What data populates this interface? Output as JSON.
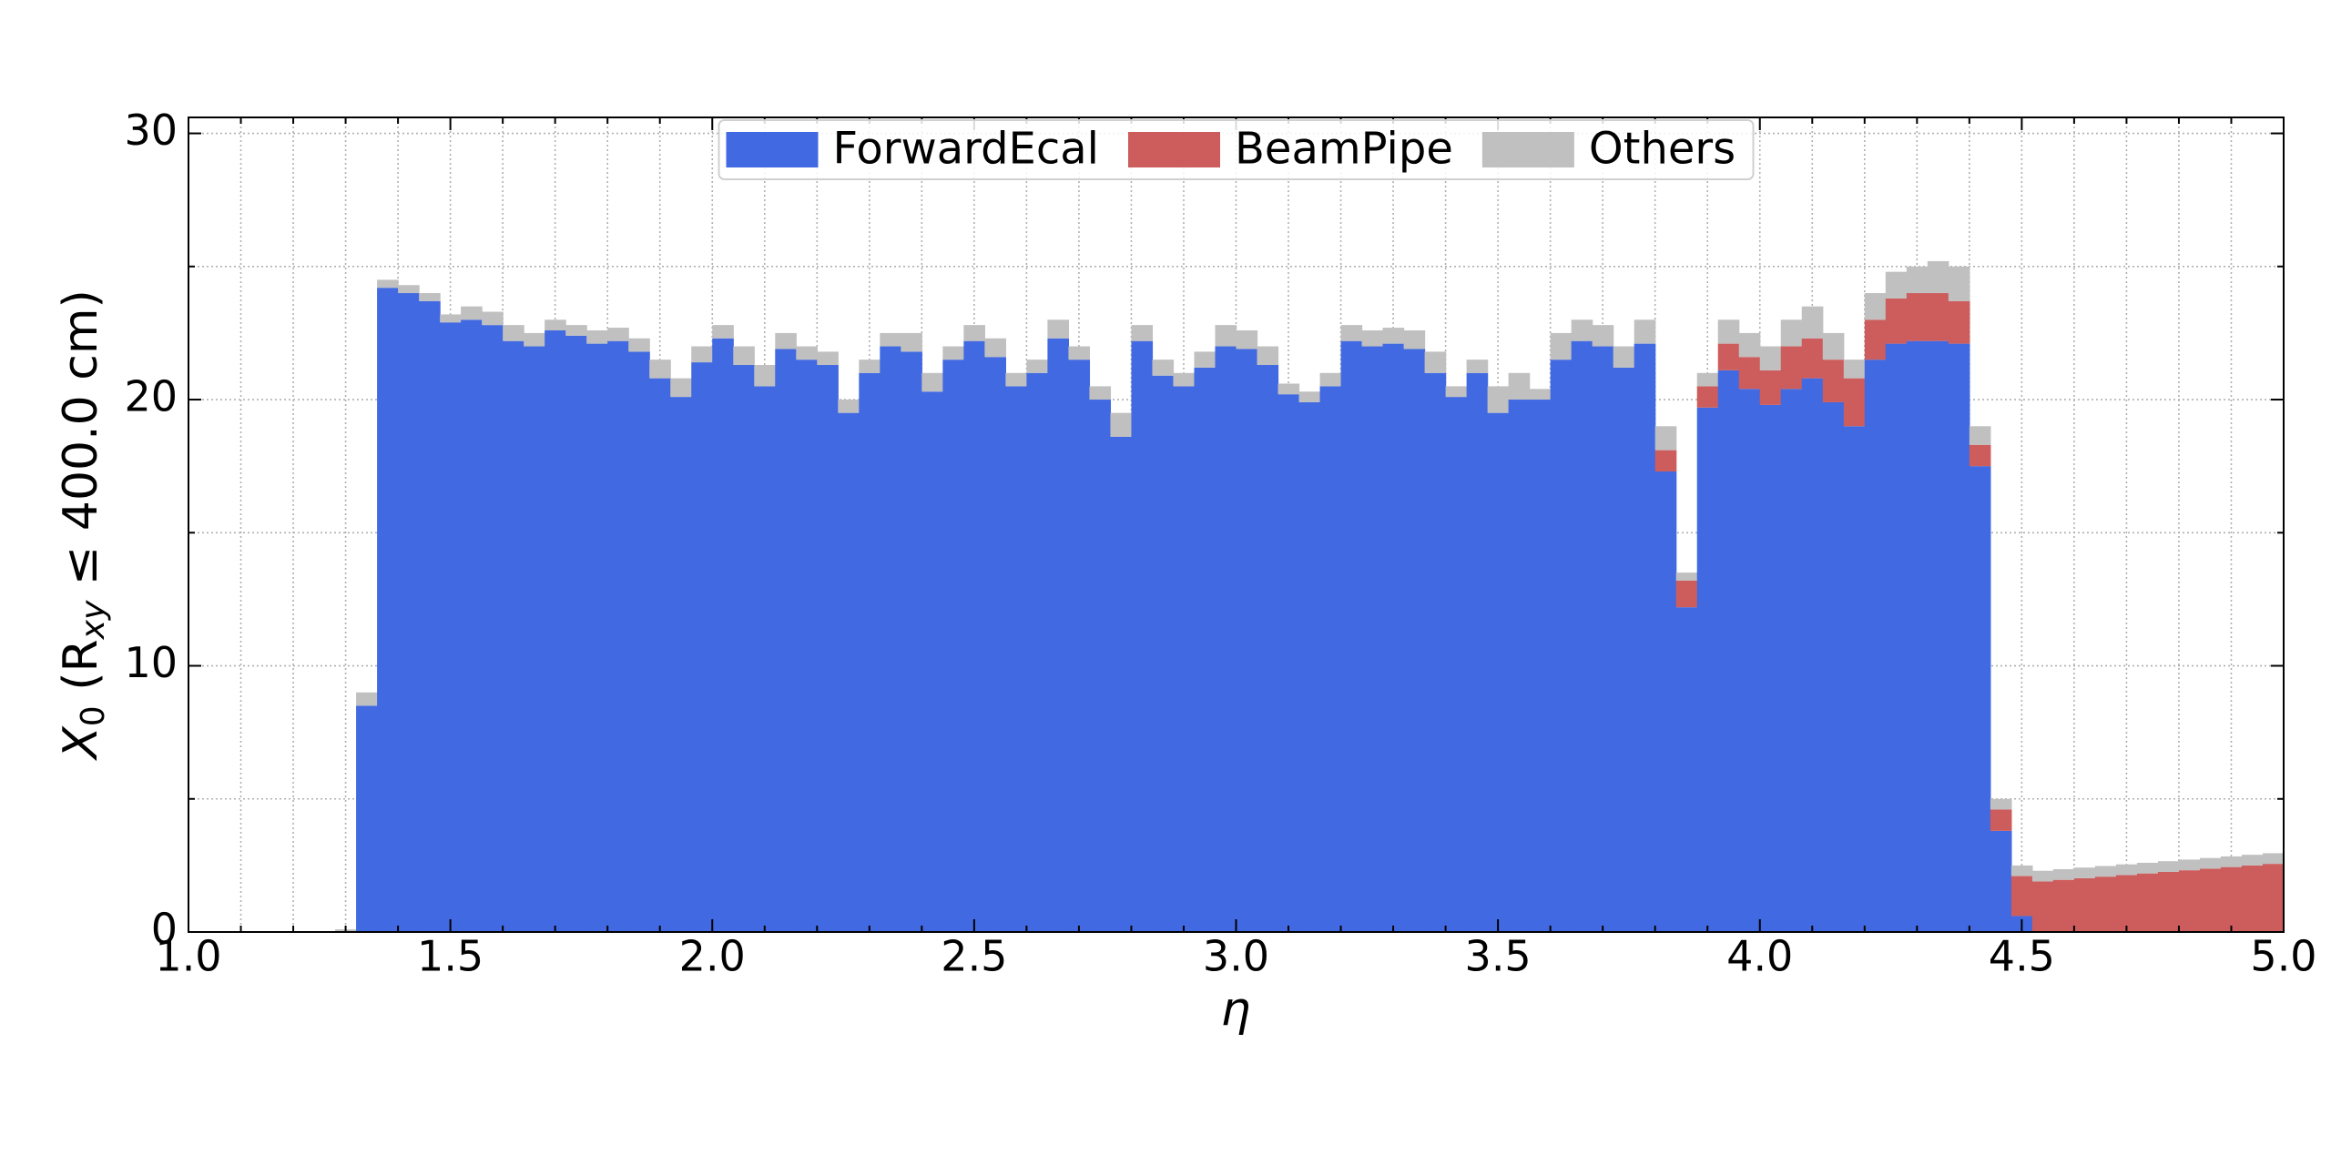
{
  "chart_data": {
    "type": "stacked_histogram",
    "xlabel": "η",
    "ylabel": [
      "X",
      "0",
      " (R",
      "xy",
      " ≤ 400.0 cm)"
    ],
    "bins": [
      1.0,
      1.04,
      1.08,
      1.12,
      1.16,
      1.2,
      1.24,
      1.28,
      1.32,
      1.36,
      1.4,
      1.44,
      1.48,
      1.52,
      1.56,
      1.6,
      1.64,
      1.68,
      1.72,
      1.76,
      1.8,
      1.84,
      1.88,
      1.92,
      1.96,
      2.0,
      2.04,
      2.08,
      2.12,
      2.16,
      2.2,
      2.24,
      2.28,
      2.32,
      2.36,
      2.4,
      2.44,
      2.48,
      2.52,
      2.56,
      2.6,
      2.64,
      2.68,
      2.72,
      2.76,
      2.8,
      2.84,
      2.88,
      2.92,
      2.96,
      3.0,
      3.04,
      3.08,
      3.12,
      3.16,
      3.2,
      3.24,
      3.28,
      3.32,
      3.36,
      3.4,
      3.44,
      3.48,
      3.52,
      3.56,
      3.6,
      3.64,
      3.68,
      3.72,
      3.76,
      3.8,
      3.84,
      3.88,
      3.92,
      3.96,
      4.0,
      4.04,
      4.08,
      4.12,
      4.16,
      4.2,
      4.24,
      4.28,
      4.32,
      4.36,
      4.4,
      4.44,
      4.48,
      4.52,
      4.56,
      4.6,
      4.64,
      4.68,
      4.72,
      4.76,
      4.8,
      4.84,
      4.88,
      4.92,
      4.96,
      5.0
    ],
    "series": [
      {
        "name": "ForwardEcal",
        "color": "#4169e1",
        "values": [
          0,
          0,
          0,
          0,
          0,
          0,
          0,
          0,
          8.5,
          24.2,
          24.0,
          23.7,
          22.9,
          23.0,
          22.8,
          22.2,
          22.0,
          22.6,
          22.4,
          22.1,
          22.2,
          21.8,
          20.8,
          20.1,
          21.4,
          22.3,
          21.3,
          20.5,
          21.9,
          21.5,
          21.3,
          19.5,
          21.0,
          22.0,
          21.8,
          20.3,
          21.5,
          22.2,
          21.6,
          20.5,
          21.0,
          22.3,
          21.5,
          20.0,
          18.6,
          22.2,
          20.9,
          20.5,
          21.2,
          22.0,
          21.9,
          21.3,
          20.2,
          19.9,
          20.5,
          22.2,
          22.0,
          22.1,
          21.9,
          21.0,
          20.1,
          21.0,
          19.5,
          20.0,
          20.0,
          21.5,
          22.2,
          22.0,
          21.2,
          22.1,
          17.3,
          12.2,
          19.7,
          21.1,
          20.4,
          19.8,
          20.4,
          20.8,
          19.9,
          19.0,
          21.5,
          22.1,
          22.2,
          22.2,
          22.1,
          17.5,
          3.8,
          0.6,
          0,
          0,
          0,
          0,
          0,
          0,
          0,
          0,
          0,
          0,
          0,
          0
        ]
      },
      {
        "name": "BeamPipe",
        "color": "#cd5c5c",
        "values": [
          0,
          0,
          0,
          0,
          0,
          0,
          0,
          0,
          0,
          0,
          0,
          0,
          0,
          0,
          0,
          0,
          0,
          0,
          0,
          0,
          0,
          0,
          0,
          0,
          0,
          0,
          0,
          0,
          0,
          0,
          0,
          0,
          0,
          0,
          0,
          0,
          0,
          0,
          0,
          0,
          0,
          0,
          0,
          0,
          0,
          0,
          0,
          0,
          0,
          0,
          0,
          0,
          0,
          0,
          0,
          0,
          0,
          0,
          0,
          0,
          0,
          0,
          0,
          0,
          0,
          0,
          0,
          0,
          0,
          0,
          0.8,
          1.0,
          0.8,
          1.0,
          1.2,
          1.3,
          1.6,
          1.5,
          1.6,
          1.8,
          1.5,
          1.7,
          1.8,
          1.8,
          1.6,
          0.8,
          0.8,
          1.5,
          1.9,
          1.96,
          2.02,
          2.08,
          2.14,
          2.2,
          2.26,
          2.32,
          2.38,
          2.44,
          2.5,
          2.56
        ]
      },
      {
        "name": "Others",
        "color": "#c0c0c0",
        "values": [
          0,
          0,
          0,
          0,
          0,
          0,
          0,
          0.1,
          0.5,
          0.3,
          0.3,
          0.3,
          0.3,
          0.5,
          0.5,
          0.6,
          0.5,
          0.4,
          0.4,
          0.5,
          0.5,
          0.5,
          0.7,
          0.7,
          0.6,
          0.5,
          0.7,
          0.8,
          0.6,
          0.5,
          0.5,
          0.5,
          0.5,
          0.5,
          0.7,
          0.7,
          0.5,
          0.6,
          0.7,
          0.5,
          0.5,
          0.7,
          0.5,
          0.5,
          0.9,
          0.6,
          0.6,
          0.5,
          0.6,
          0.8,
          0.7,
          0.7,
          0.4,
          0.4,
          0.5,
          0.6,
          0.6,
          0.6,
          0.7,
          0.8,
          0.4,
          0.5,
          1.0,
          1.0,
          0.4,
          1.0,
          0.8,
          0.8,
          0.8,
          0.9,
          0.9,
          0.3,
          0.5,
          0.9,
          0.9,
          0.9,
          1.0,
          1.2,
          1.0,
          0.7,
          1.0,
          1.0,
          1.0,
          1.2,
          1.3,
          0.7,
          0.4,
          0.4,
          0.4,
          0.4,
          0.4,
          0.4,
          0.4,
          0.4,
          0.4,
          0.4,
          0.4,
          0.4,
          0.4,
          0.4
        ]
      }
    ],
    "xlim": [
      1.0,
      5.0
    ],
    "ylim": [
      0,
      30.6
    ],
    "xticks": [
      {
        "value": 1.0,
        "label": "1.0"
      },
      1.5,
      {
        "value": 2.0,
        "label": "2.0"
      },
      2.5,
      {
        "value": 3.0,
        "label": "3.0"
      },
      3.5,
      {
        "value": 4.0,
        "label": "4.0"
      },
      4.5,
      {
        "value": 5.0,
        "label": "5.0"
      }
    ],
    "xminorticks": [
      1.1,
      1.2,
      1.3,
      1.4,
      1.6,
      1.7,
      1.8,
      1.9,
      2.1,
      2.2,
      2.3,
      2.4,
      2.6,
      2.7,
      2.8,
      2.9,
      3.1,
      3.2,
      3.3,
      3.4,
      3.6,
      3.7,
      3.8,
      3.9,
      4.1,
      4.2,
      4.3,
      4.4,
      4.6,
      4.7,
      4.8,
      4.9
    ],
    "yticks": [
      0,
      10,
      20,
      30
    ],
    "yminorticks": [
      5,
      15,
      25
    ],
    "grid": true,
    "legend": "upper center"
  }
}
